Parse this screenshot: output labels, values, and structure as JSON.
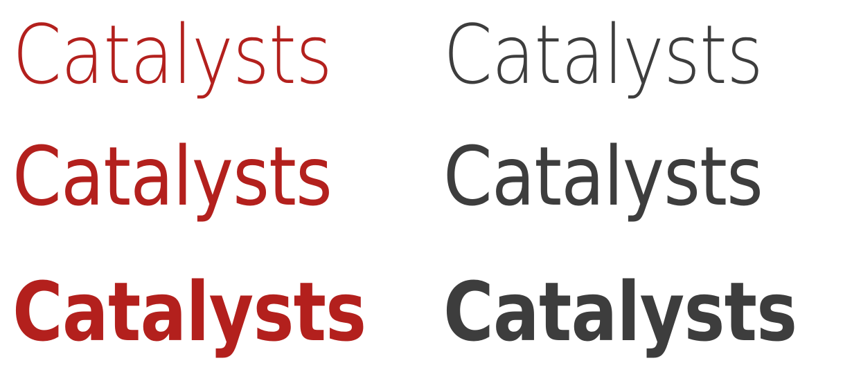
{
  "colors": {
    "left_column": "#b3201d",
    "right_column": "#3d3d3d"
  },
  "rows": [
    {
      "left": "Catalysts",
      "right": "Catalysts"
    },
    {
      "left": "Catalysts",
      "right": "Catalysts"
    },
    {
      "left": "Catalysts",
      "right": "Catalysts"
    }
  ]
}
